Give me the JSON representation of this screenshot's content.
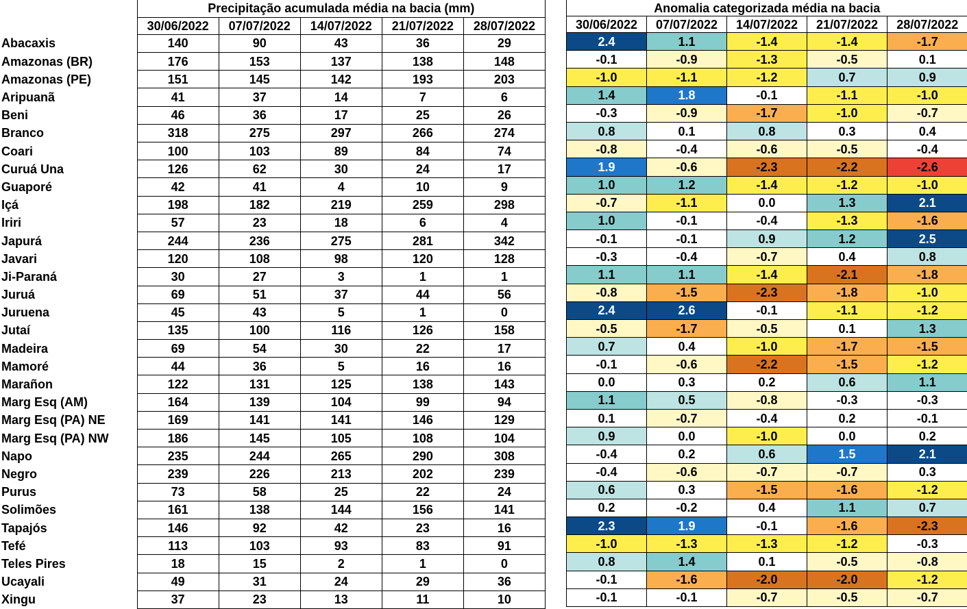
{
  "left_title": "Precipitação acumulada média na bacia (mm)",
  "right_title": "Anomalia categorizada média na bacia",
  "dates": [
    "30/06/2022",
    "07/07/2022",
    "14/07/2022",
    "21/07/2022",
    "28/07/2022"
  ],
  "colors": {
    "dark_blue": "#0b4a86",
    "mid_blue": "#1f77c9",
    "teal": "#86cccc",
    "light_teal": "#bde3e3",
    "white": "#ffffff",
    "pale_yellow": "#fff7c4",
    "yellow": "#fdee4d",
    "light_orange": "#fbae4e",
    "orange": "#d9731f",
    "red": "#ee4136"
  },
  "rows": [
    {
      "name": "Abacaxis",
      "precip": [
        "140",
        "90",
        "43",
        "36",
        "29"
      ],
      "anom": [
        "2.4",
        "1.1",
        "-1.4",
        "-1.4",
        "-1.7"
      ]
    },
    {
      "name": "Amazonas (BR)",
      "precip": [
        "176",
        "153",
        "137",
        "138",
        "148"
      ],
      "anom": [
        "-0.1",
        "-0.9",
        "-1.3",
        "-0.5",
        "0.1"
      ]
    },
    {
      "name": "Amazonas (PE)",
      "precip": [
        "151",
        "145",
        "142",
        "193",
        "203"
      ],
      "anom": [
        "-1.0",
        "-1.1",
        "-1.2",
        "0.7",
        "0.9"
      ]
    },
    {
      "name": "Aripuanã",
      "precip": [
        "41",
        "37",
        "14",
        "7",
        "6"
      ],
      "anom": [
        "1.4",
        "1.8",
        "-0.1",
        "-1.1",
        "-1.0"
      ]
    },
    {
      "name": "Beni",
      "precip": [
        "46",
        "36",
        "17",
        "25",
        "26"
      ],
      "anom": [
        "-0.3",
        "-0.9",
        "-1.7",
        "-1.0",
        "-0.7"
      ]
    },
    {
      "name": "Branco",
      "precip": [
        "318",
        "275",
        "297",
        "266",
        "274"
      ],
      "anom": [
        "0.8",
        "0.1",
        "0.8",
        "0.3",
        "0.4"
      ]
    },
    {
      "name": "Coari",
      "precip": [
        "100",
        "103",
        "89",
        "84",
        "74"
      ],
      "anom": [
        "-0.8",
        "-0.4",
        "-0.6",
        "-0.5",
        "-0.4"
      ]
    },
    {
      "name": "Curuá Una",
      "precip": [
        "126",
        "62",
        "30",
        "24",
        "17"
      ],
      "anom": [
        "1.9",
        "-0.6",
        "-2.3",
        "-2.2",
        "-2.6"
      ]
    },
    {
      "name": "Guaporé",
      "precip": [
        "42",
        "41",
        "4",
        "10",
        "9"
      ],
      "anom": [
        "1.0",
        "1.2",
        "-1.4",
        "-1.2",
        "-1.0"
      ]
    },
    {
      "name": "Içá",
      "precip": [
        "198",
        "182",
        "219",
        "259",
        "298"
      ],
      "anom": [
        "-0.7",
        "-1.1",
        "0.0",
        "1.3",
        "2.1"
      ]
    },
    {
      "name": "Iriri",
      "precip": [
        "57",
        "23",
        "18",
        "6",
        "4"
      ],
      "anom": [
        "1.0",
        "-0.1",
        "-0.4",
        "-1.3",
        "-1.6"
      ]
    },
    {
      "name": "Japurá",
      "precip": [
        "244",
        "236",
        "275",
        "281",
        "342"
      ],
      "anom": [
        "-0.1",
        "-0.1",
        "0.9",
        "1.2",
        "2.5"
      ]
    },
    {
      "name": "Javari",
      "precip": [
        "120",
        "108",
        "98",
        "120",
        "128"
      ],
      "anom": [
        "-0.3",
        "-0.4",
        "-0.7",
        "0.4",
        "0.8"
      ]
    },
    {
      "name": "Ji-Paraná",
      "precip": [
        "30",
        "27",
        "3",
        "1",
        "1"
      ],
      "anom": [
        "1.1",
        "1.1",
        "-1.4",
        "-2.1",
        "-1.8"
      ]
    },
    {
      "name": "Juruá",
      "precip": [
        "69",
        "51",
        "37",
        "44",
        "56"
      ],
      "anom": [
        "-0.8",
        "-1.5",
        "-2.3",
        "-1.8",
        "-1.0"
      ]
    },
    {
      "name": "Juruena",
      "precip": [
        "45",
        "43",
        "5",
        "1",
        "0"
      ],
      "anom": [
        "2.4",
        "2.6",
        "-0.1",
        "-1.1",
        "-1.2"
      ]
    },
    {
      "name": "Jutaí",
      "precip": [
        "135",
        "100",
        "116",
        "126",
        "158"
      ],
      "anom": [
        "-0.5",
        "-1.7",
        "-0.5",
        "0.1",
        "1.3"
      ]
    },
    {
      "name": "Madeira",
      "precip": [
        "69",
        "54",
        "30",
        "22",
        "17"
      ],
      "anom": [
        "0.7",
        "0.4",
        "-1.0",
        "-1.7",
        "-1.5"
      ]
    },
    {
      "name": "Mamoré",
      "precip": [
        "44",
        "36",
        "5",
        "16",
        "16"
      ],
      "anom": [
        "-0.1",
        "-0.6",
        "-2.2",
        "-1.5",
        "-1.2"
      ]
    },
    {
      "name": "Marañon",
      "precip": [
        "122",
        "131",
        "125",
        "138",
        "143"
      ],
      "anom": [
        "0.0",
        "0.3",
        "0.2",
        "0.6",
        "1.1"
      ]
    },
    {
      "name": "Marg Esq (AM)",
      "precip": [
        "164",
        "139",
        "104",
        "99",
        "94"
      ],
      "anom": [
        "1.1",
        "0.5",
        "-0.8",
        "-0.3",
        "-0.3"
      ]
    },
    {
      "name": "Marg Esq (PA) NE",
      "precip": [
        "169",
        "141",
        "141",
        "146",
        "129"
      ],
      "anom": [
        "0.1",
        "-0.7",
        "-0.4",
        "0.2",
        "-0.1"
      ]
    },
    {
      "name": "Marg Esq (PA) NW",
      "precip": [
        "186",
        "145",
        "105",
        "108",
        "104"
      ],
      "anom": [
        "0.9",
        "0.0",
        "-1.0",
        "0.0",
        "0.2"
      ]
    },
    {
      "name": "Napo",
      "precip": [
        "235",
        "244",
        "265",
        "290",
        "308"
      ],
      "anom": [
        "-0.4",
        "0.2",
        "0.6",
        "1.5",
        "2.1"
      ]
    },
    {
      "name": "Negro",
      "precip": [
        "239",
        "226",
        "213",
        "202",
        "239"
      ],
      "anom": [
        "-0.4",
        "-0.6",
        "-0.7",
        "-0.7",
        "0.3"
      ]
    },
    {
      "name": "Purus",
      "precip": [
        "73",
        "58",
        "25",
        "22",
        "24"
      ],
      "anom": [
        "0.6",
        "0.3",
        "-1.5",
        "-1.6",
        "-1.2"
      ]
    },
    {
      "name": "Solimões",
      "precip": [
        "161",
        "138",
        "144",
        "156",
        "141"
      ],
      "anom": [
        "0.2",
        "-0.2",
        "0.4",
        "1.1",
        "0.7"
      ]
    },
    {
      "name": "Tapajós",
      "precip": [
        "146",
        "92",
        "42",
        "23",
        "16"
      ],
      "anom": [
        "2.3",
        "1.9",
        "-0.1",
        "-1.6",
        "-2.3"
      ]
    },
    {
      "name": "Tefé",
      "precip": [
        "113",
        "103",
        "93",
        "83",
        "91"
      ],
      "anom": [
        "-1.0",
        "-1.3",
        "-1.3",
        "-1.2",
        "-0.3"
      ]
    },
    {
      "name": "Teles Pires",
      "precip": [
        "18",
        "15",
        "2",
        "1",
        "0"
      ],
      "anom": [
        "0.8",
        "1.4",
        "0.1",
        "-0.5",
        "-0.8"
      ]
    },
    {
      "name": "Ucayali",
      "precip": [
        "49",
        "31",
        "24",
        "29",
        "36"
      ],
      "anom": [
        "-0.1",
        "-1.6",
        "-2.0",
        "-2.0",
        "-1.2"
      ]
    },
    {
      "name": "Xingu",
      "precip": [
        "37",
        "23",
        "13",
        "11",
        "10"
      ],
      "anom": [
        "-0.1",
        "-0.1",
        "-0.7",
        "-0.5",
        "-0.7"
      ]
    }
  ]
}
